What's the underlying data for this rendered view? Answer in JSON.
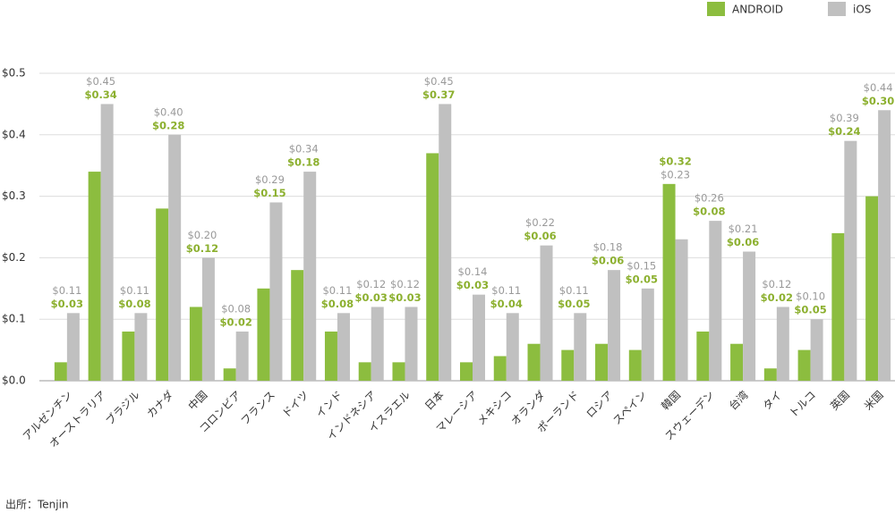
{
  "chart_data": {
    "type": "bar",
    "source": "出所：Tenjin",
    "categories": [
      "アルゼンチン",
      "オーストラリア",
      "ブラジル",
      "カナダ",
      "中国",
      "コロンビア",
      "フランス",
      "ドイツ",
      "インド",
      "インドネシア",
      "イスラエル",
      "日本",
      "マレーシア",
      "メキシコ",
      "オランダ",
      "ポーランド",
      "ロシア",
      "スペイン",
      "韓国",
      "スウェーデン",
      "台湾",
      "タイ",
      "トルコ",
      "英国",
      "米国"
    ],
    "series": [
      {
        "name": "ANDROID",
        "color": "#8cbd3f",
        "values": [
          0.03,
          0.34,
          0.08,
          0.28,
          0.12,
          0.02,
          0.15,
          0.18,
          0.08,
          0.03,
          0.03,
          0.37,
          0.03,
          0.04,
          0.06,
          0.05,
          0.06,
          0.05,
          0.32,
          0.08,
          0.06,
          0.02,
          0.05,
          0.24,
          0.3
        ],
        "value_labels": [
          "$0.03",
          "$0.34",
          "$0.08",
          "$0.28",
          "$0.12",
          "$0.02",
          "$0.15",
          "$0.18",
          "$0.08",
          "$0.03",
          "$0.03",
          "$0.37",
          "$0.03",
          "$0.04",
          "$0.06",
          "$0.05",
          "$0.06",
          "$0.05",
          "$0.32",
          "$0.08",
          "$0.06",
          "$0.02",
          "$0.05",
          "$0.24",
          "$0.30"
        ]
      },
      {
        "name": "iOS",
        "color": "#c0c0c0",
        "values": [
          0.11,
          0.45,
          0.11,
          0.4,
          0.2,
          0.08,
          0.29,
          0.34,
          0.11,
          0.12,
          0.12,
          0.45,
          0.14,
          0.11,
          0.22,
          0.11,
          0.18,
          0.15,
          0.23,
          0.26,
          0.21,
          0.12,
          0.1,
          0.39,
          0.44
        ],
        "value_labels": [
          "$0.11",
          "$0.45",
          "$0.11",
          "$0.40",
          "$0.20",
          "$0.08",
          "$0.29",
          "$0.34",
          "$0.11",
          "$0.12",
          "$0.12",
          "$0.45",
          "$0.14",
          "$0.11",
          "$0.22",
          "$0.11",
          "$0.18",
          "$0.15",
          "$0.23",
          "$0.26",
          "$0.21",
          "$0.12",
          "$0.10",
          "$0.39",
          "$0.44"
        ]
      }
    ],
    "ylim": [
      0,
      0.5
    ],
    "yticks": [
      {
        "value": 0,
        "label": "$0.0"
      },
      {
        "value": 0.1,
        "label": "$0.1"
      },
      {
        "value": 0.2,
        "label": "$0.2"
      },
      {
        "value": 0.3,
        "label": "$0.3"
      },
      {
        "value": 0.4,
        "label": "$0.4"
      },
      {
        "value": 0.5,
        "label": "$0.5"
      }
    ],
    "grid": true,
    "legend": "top-right"
  }
}
